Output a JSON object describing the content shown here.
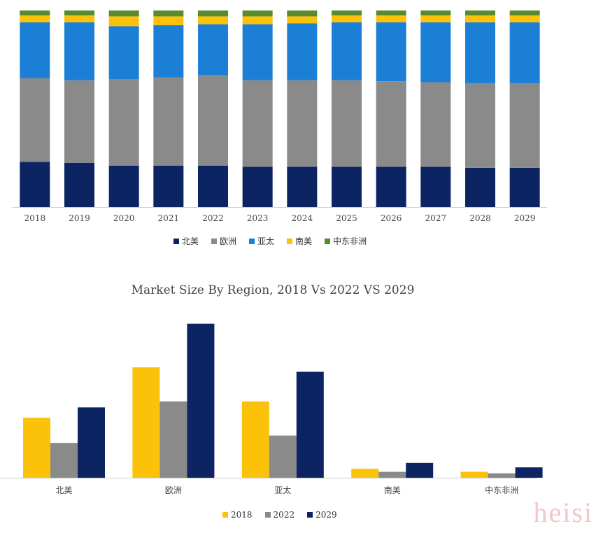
{
  "colors": {
    "north_america": "#0c2461",
    "europe": "#8a8a8a",
    "asia_pacific": "#1b7fd6",
    "south_america": "#fcc20a",
    "mea": "#5a8a2e",
    "y2018": "#fcc20a",
    "y2022": "#8a8a8a",
    "y2029": "#0c2461",
    "axis": "#cfcfcf",
    "watermark": "#eb96a0"
  },
  "watermark": "heisi",
  "chart_data": [
    {
      "type": "bar",
      "stacked": true,
      "normalized": true,
      "categories": [
        "2018",
        "2019",
        "2020",
        "2021",
        "2022",
        "2023",
        "2024",
        "2025",
        "2026",
        "2027",
        "2028",
        "2029"
      ],
      "series": [
        {
          "name": "北美",
          "values": [
            23,
            22.5,
            21,
            21,
            21,
            20.5,
            20.5,
            20.5,
            20.5,
            20.5,
            20,
            20
          ]
        },
        {
          "name": "欧洲",
          "values": [
            42.5,
            42,
            44,
            45,
            46,
            44,
            44,
            44,
            43.5,
            43,
            43,
            43
          ]
        },
        {
          "name": "亚太",
          "values": [
            28.5,
            29.5,
            27,
            26.5,
            26,
            28.5,
            29,
            29.5,
            30,
            30.5,
            31,
            31
          ]
        },
        {
          "name": "南美",
          "values": [
            3.5,
            3.5,
            5,
            4.5,
            4,
            4,
            3.5,
            3.5,
            3.5,
            3.5,
            3.5,
            3.5
          ]
        },
        {
          "name": "中东非洲",
          "values": [
            2.5,
            2.5,
            3,
            3,
            3,
            3,
            3,
            2.5,
            2.5,
            2.5,
            2.5,
            2.5
          ]
        }
      ],
      "ylim": [
        0,
        100
      ],
      "grid": false,
      "legend": "bottom"
    },
    {
      "type": "bar",
      "title": "Market Size By Region, 2018 Vs 2022 VS 2029",
      "categories": [
        "北美",
        "欧洲",
        "亚太",
        "南美",
        "中东非洲"
      ],
      "series": [
        {
          "name": "2018",
          "values": [
            81,
            149,
            103,
            12,
            8
          ]
        },
        {
          "name": "2022",
          "values": [
            47,
            103,
            57,
            8,
            6
          ]
        },
        {
          "name": "2029",
          "values": [
            95,
            208,
            143,
            20,
            14
          ]
        }
      ],
      "ylim": [
        0,
        220
      ],
      "grid": false,
      "legend": "bottom"
    }
  ]
}
